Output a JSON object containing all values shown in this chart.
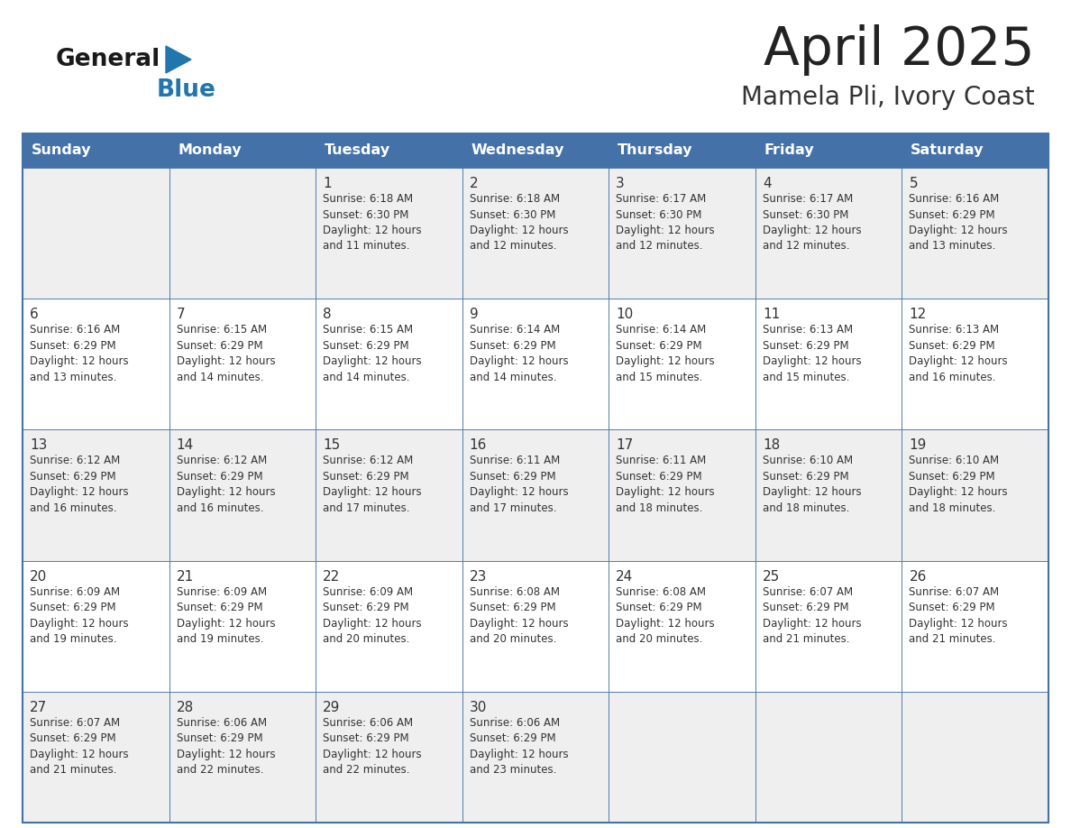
{
  "title": "April 2025",
  "subtitle": "Mamela Pli, Ivory Coast",
  "days_of_week": [
    "Sunday",
    "Monday",
    "Tuesday",
    "Wednesday",
    "Thursday",
    "Friday",
    "Saturday"
  ],
  "header_bg": "#4472A8",
  "header_text": "#FFFFFF",
  "cell_bg_light": "#EFEFEF",
  "cell_bg_white": "#FFFFFF",
  "cell_text": "#333333",
  "day_num_color": "#333333",
  "border_color": "#4472A8",
  "title_color": "#222222",
  "subtitle_color": "#333333",
  "general_text_color": "#1a1a1a",
  "blue_logo_color": "#2176AE",
  "calendar_data": [
    [
      "",
      "",
      "1\nSunrise: 6:18 AM\nSunset: 6:30 PM\nDaylight: 12 hours\nand 11 minutes.",
      "2\nSunrise: 6:18 AM\nSunset: 6:30 PM\nDaylight: 12 hours\nand 12 minutes.",
      "3\nSunrise: 6:17 AM\nSunset: 6:30 PM\nDaylight: 12 hours\nand 12 minutes.",
      "4\nSunrise: 6:17 AM\nSunset: 6:30 PM\nDaylight: 12 hours\nand 12 minutes.",
      "5\nSunrise: 6:16 AM\nSunset: 6:29 PM\nDaylight: 12 hours\nand 13 minutes."
    ],
    [
      "6\nSunrise: 6:16 AM\nSunset: 6:29 PM\nDaylight: 12 hours\nand 13 minutes.",
      "7\nSunrise: 6:15 AM\nSunset: 6:29 PM\nDaylight: 12 hours\nand 14 minutes.",
      "8\nSunrise: 6:15 AM\nSunset: 6:29 PM\nDaylight: 12 hours\nand 14 minutes.",
      "9\nSunrise: 6:14 AM\nSunset: 6:29 PM\nDaylight: 12 hours\nand 14 minutes.",
      "10\nSunrise: 6:14 AM\nSunset: 6:29 PM\nDaylight: 12 hours\nand 15 minutes.",
      "11\nSunrise: 6:13 AM\nSunset: 6:29 PM\nDaylight: 12 hours\nand 15 minutes.",
      "12\nSunrise: 6:13 AM\nSunset: 6:29 PM\nDaylight: 12 hours\nand 16 minutes."
    ],
    [
      "13\nSunrise: 6:12 AM\nSunset: 6:29 PM\nDaylight: 12 hours\nand 16 minutes.",
      "14\nSunrise: 6:12 AM\nSunset: 6:29 PM\nDaylight: 12 hours\nand 16 minutes.",
      "15\nSunrise: 6:12 AM\nSunset: 6:29 PM\nDaylight: 12 hours\nand 17 minutes.",
      "16\nSunrise: 6:11 AM\nSunset: 6:29 PM\nDaylight: 12 hours\nand 17 minutes.",
      "17\nSunrise: 6:11 AM\nSunset: 6:29 PM\nDaylight: 12 hours\nand 18 minutes.",
      "18\nSunrise: 6:10 AM\nSunset: 6:29 PM\nDaylight: 12 hours\nand 18 minutes.",
      "19\nSunrise: 6:10 AM\nSunset: 6:29 PM\nDaylight: 12 hours\nand 18 minutes."
    ],
    [
      "20\nSunrise: 6:09 AM\nSunset: 6:29 PM\nDaylight: 12 hours\nand 19 minutes.",
      "21\nSunrise: 6:09 AM\nSunset: 6:29 PM\nDaylight: 12 hours\nand 19 minutes.",
      "22\nSunrise: 6:09 AM\nSunset: 6:29 PM\nDaylight: 12 hours\nand 20 minutes.",
      "23\nSunrise: 6:08 AM\nSunset: 6:29 PM\nDaylight: 12 hours\nand 20 minutes.",
      "24\nSunrise: 6:08 AM\nSunset: 6:29 PM\nDaylight: 12 hours\nand 20 minutes.",
      "25\nSunrise: 6:07 AM\nSunset: 6:29 PM\nDaylight: 12 hours\nand 21 minutes.",
      "26\nSunrise: 6:07 AM\nSunset: 6:29 PM\nDaylight: 12 hours\nand 21 minutes."
    ],
    [
      "27\nSunrise: 6:07 AM\nSunset: 6:29 PM\nDaylight: 12 hours\nand 21 minutes.",
      "28\nSunrise: 6:06 AM\nSunset: 6:29 PM\nDaylight: 12 hours\nand 22 minutes.",
      "29\nSunrise: 6:06 AM\nSunset: 6:29 PM\nDaylight: 12 hours\nand 22 minutes.",
      "30\nSunrise: 6:06 AM\nSunset: 6:29 PM\nDaylight: 12 hours\nand 23 minutes.",
      "",
      "",
      ""
    ]
  ]
}
